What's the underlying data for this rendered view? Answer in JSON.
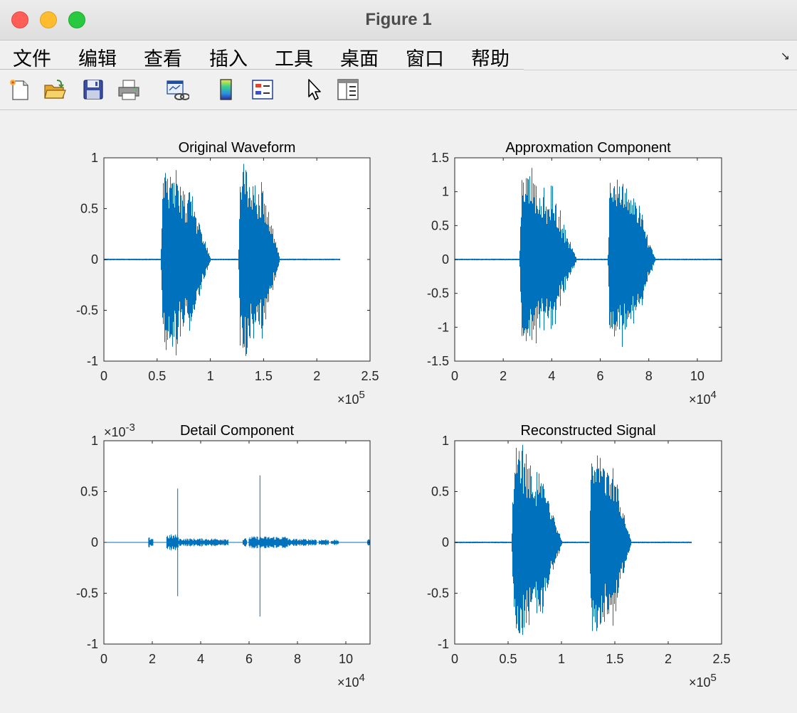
{
  "window": {
    "title": "Figure 1"
  },
  "menu": {
    "items": [
      "文件",
      "编辑",
      "查看",
      "插入",
      "工具",
      "桌面",
      "窗口",
      "帮助"
    ]
  },
  "toolbar": {
    "icons": [
      "new-figure-icon",
      "open-file-icon",
      "save-icon",
      "print-icon",
      "link-plot-icon",
      "colorbar-icon",
      "legend-icon",
      "pointer-icon",
      "property-editor-icon"
    ]
  },
  "colors": {
    "line": "#0072BD"
  },
  "chart_data": [
    {
      "type": "line",
      "title": "Original Waveform",
      "xlim": [
        0,
        250000
      ],
      "ylim": [
        -1,
        1
      ],
      "xticks": [
        0,
        50000,
        100000,
        150000,
        200000,
        250000
      ],
      "xticklabels": [
        "0",
        "0.5",
        "1",
        "1.5",
        "2",
        "2.5"
      ],
      "yticks": [
        -1,
        -0.5,
        0,
        0.5,
        1
      ],
      "yticklabels": [
        "-1",
        "-0.5",
        "0",
        "0.5",
        "1"
      ],
      "x_exponent": "5",
      "signal_end": 221000,
      "bursts": [
        {
          "start": 53000,
          "end": 100000,
          "peak": 1.0
        },
        {
          "start": 126000,
          "end": 165000,
          "peak": 1.0
        }
      ]
    },
    {
      "type": "line",
      "title": "Approxmation Component",
      "xlim": [
        0,
        110000
      ],
      "ylim": [
        -1.5,
        1.5
      ],
      "xticks": [
        0,
        20000,
        40000,
        60000,
        80000,
        100000
      ],
      "xticklabels": [
        "0",
        "2",
        "4",
        "6",
        "8",
        "10"
      ],
      "yticks": [
        -1.5,
        -1,
        -0.5,
        0,
        0.5,
        1,
        1.5
      ],
      "yticklabels": [
        "-1.5",
        "-1",
        "-0.5",
        "0",
        "0.5",
        "1",
        "1.5"
      ],
      "x_exponent": "4",
      "signal_end": 110000,
      "bursts": [
        {
          "start": 26500,
          "end": 50000,
          "peak": 1.4
        },
        {
          "start": 63000,
          "end": 82500,
          "peak": 1.4
        }
      ]
    },
    {
      "type": "line",
      "title": "Detail Component",
      "xlim": [
        0,
        110000
      ],
      "ylim": [
        -1,
        1
      ],
      "xticks": [
        0,
        20000,
        40000,
        60000,
        80000,
        100000
      ],
      "xticklabels": [
        "0",
        "2",
        "4",
        "6",
        "8",
        "10"
      ],
      "yticks": [
        -1,
        -0.5,
        0,
        0.5,
        1
      ],
      "yticklabels": [
        "-1",
        "-0.5",
        "0",
        "0.5",
        "1"
      ],
      "x_exponent": "4",
      "y_exponent": "-3",
      "signal_end": 110000,
      "noise_regions": [
        {
          "start": 18500,
          "end": 20500,
          "amp": 0.05
        },
        {
          "start": 26000,
          "end": 31000,
          "amp": 0.08
        },
        {
          "start": 31000,
          "end": 51500,
          "amp": 0.04
        },
        {
          "start": 57500,
          "end": 59000,
          "amp": 0.04
        },
        {
          "start": 60000,
          "end": 76000,
          "amp": 0.06
        },
        {
          "start": 76000,
          "end": 88000,
          "amp": 0.035
        },
        {
          "start": 89000,
          "end": 93000,
          "amp": 0.03
        },
        {
          "start": 94000,
          "end": 97000,
          "amp": 0.025
        },
        {
          "start": 109000,
          "end": 110000,
          "amp": 0.03
        }
      ],
      "spikes": [
        {
          "x": 30500,
          "max": 0.53,
          "min": -0.53
        },
        {
          "x": 64500,
          "max": 0.66,
          "min": -0.73
        }
      ]
    },
    {
      "type": "line",
      "title": "Reconstructed Signal",
      "xlim": [
        0,
        250000
      ],
      "ylim": [
        -1,
        1
      ],
      "xticks": [
        0,
        50000,
        100000,
        150000,
        200000,
        250000
      ],
      "xticklabels": [
        "0",
        "0.5",
        "1",
        "1.5",
        "2",
        "2.5"
      ],
      "yticks": [
        -1,
        -0.5,
        0,
        0.5,
        1
      ],
      "yticklabels": [
        "-1",
        "-0.5",
        "0",
        "0.5",
        "1"
      ],
      "x_exponent": "5",
      "signal_end": 221000,
      "bursts": [
        {
          "start": 53000,
          "end": 100000,
          "peak": 1.0
        },
        {
          "start": 126000,
          "end": 165000,
          "peak": 1.0
        }
      ]
    }
  ]
}
